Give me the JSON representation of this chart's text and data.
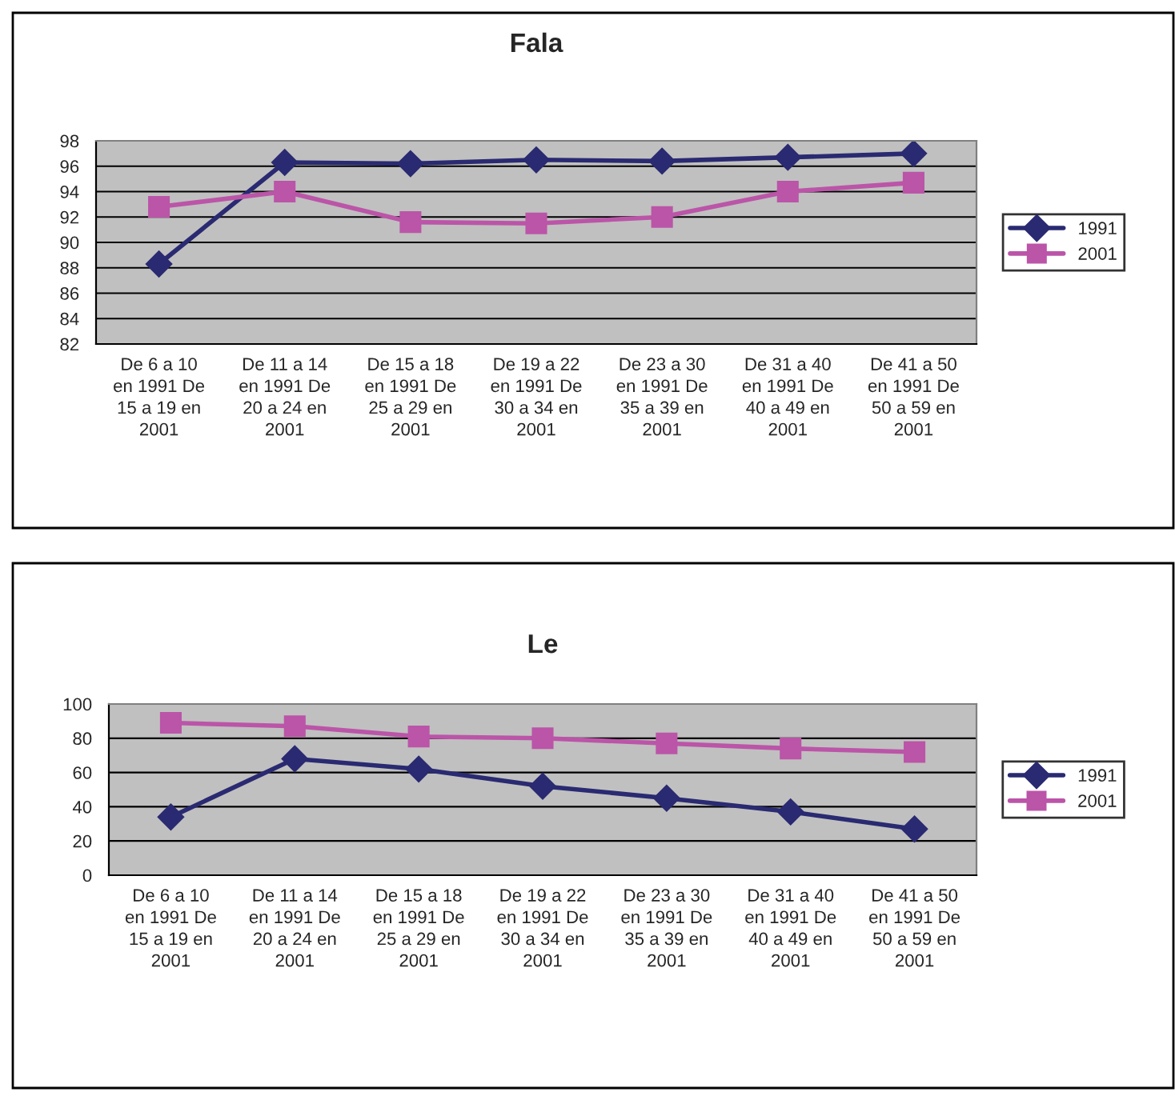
{
  "chart_data": [
    {
      "type": "line",
      "title": "Fala",
      "categories": [
        "De 6 a 10 en 1991 De 15 a 19 en 2001",
        "De 11 a 14 en 1991 De 20 a 24 en 2001",
        "De 15 a 18 en 1991 De 25 a 29 en 2001",
        "De 19 a 22 en 1991 De 30 a 34 en 2001",
        "De 23 a 30 en 1991 De 35 a 39 en 2001",
        "De 31 a 40 en 1991 De 40 a 49 en 2001",
        "De 41 a 50 en 1991 De 50 a 59 en 2001"
      ],
      "series": [
        {
          "name": "1991",
          "color": "#2a2a72",
          "marker": "diamond",
          "values": [
            88.3,
            96.3,
            96.2,
            96.5,
            96.4,
            96.7,
            97.0
          ]
        },
        {
          "name": "2001",
          "color": "#bb55a8",
          "marker": "square",
          "values": [
            92.8,
            94.0,
            91.6,
            91.5,
            92.0,
            94.0,
            94.7
          ]
        }
      ],
      "ylim": [
        82,
        98
      ],
      "yticks": [
        82,
        84,
        86,
        88,
        90,
        92,
        94,
        96,
        98
      ],
      "grid": "y",
      "legend": "right",
      "line_style": "solid"
    },
    {
      "type": "line",
      "title": "Le",
      "categories": [
        "De 6 a 10 en 1991 De 15 a 19 en 2001",
        "De 11 a 14 en 1991 De 20 a 24 en 2001",
        "De 15 a 18 en 1991 De 25 a 29 en 2001",
        "De 19 a 22 en 1991 De 30 a 34 en 2001",
        "De 23 a 30 en 1991 De 35 a 39 en 2001",
        "De 31 a 40 en 1991 De 40 a 49 en 2001",
        "De 41 a 50 en 1991 De 50 a 59 en 2001"
      ],
      "series": [
        {
          "name": "1991",
          "color": "#2a2a72",
          "marker": "diamond",
          "values": [
            34,
            68,
            62,
            52,
            45,
            37,
            27
          ]
        },
        {
          "name": "2001",
          "color": "#bb55a8",
          "marker": "square",
          "values": [
            89,
            87,
            81,
            80,
            77,
            74,
            72
          ]
        }
      ],
      "ylim": [
        0,
        100
      ],
      "yticks": [
        0,
        20,
        40,
        60,
        80,
        100
      ],
      "grid": "y",
      "legend": "right",
      "line_style": "solid"
    }
  ]
}
